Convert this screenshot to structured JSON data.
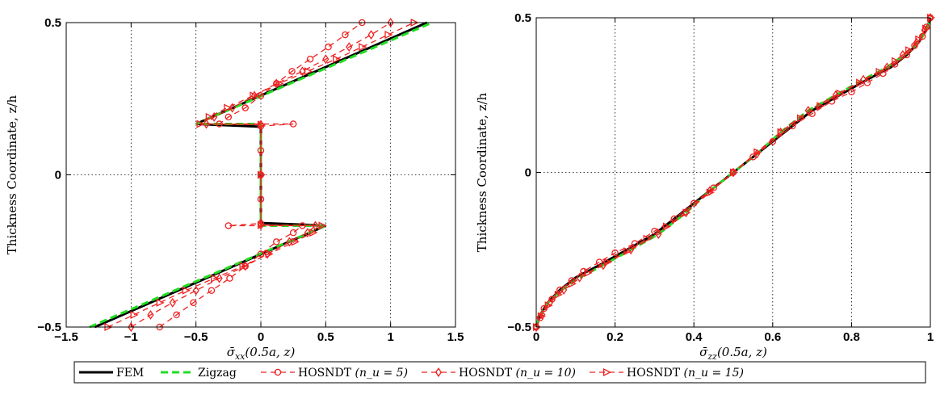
{
  "chart_data": [
    {
      "type": "line",
      "xlabel": "σ̄xx(0.5a, z)",
      "ylabel": "Thickness Coordinate, z/h",
      "xlim": [
        -1.5,
        1.5
      ],
      "ylim": [
        -0.5,
        0.5
      ],
      "xticks": [
        "−1.5",
        "−1",
        "−0.5",
        "0",
        "0.5",
        "1",
        "1.5"
      ],
      "yticks": [
        "−0.5",
        "0",
        "0.5"
      ],
      "grid": true,
      "series": [
        {
          "name": "FEM",
          "color": "#000000",
          "dash": "solid",
          "marker": "none",
          "points": [
            [
              -1.28,
              -0.5
            ],
            [
              0.5,
              -0.167
            ],
            [
              0.0,
              -0.158
            ],
            [
              0.0,
              0.158
            ],
            [
              -0.5,
              0.167
            ],
            [
              1.28,
              0.5
            ]
          ]
        },
        {
          "name": "Zigzag",
          "color": "#22dd22",
          "dash": "dashed",
          "marker": "none",
          "points": [
            [
              -1.32,
              -0.5
            ],
            [
              0.5,
              -0.167
            ],
            [
              0.0,
              -0.167
            ],
            [
              0.0,
              0.167
            ],
            [
              -0.5,
              0.167
            ],
            [
              1.32,
              0.5
            ]
          ]
        },
        {
          "name": "HOSNDT",
          "nu": "n_u = 5",
          "color": "#ee2222",
          "dash": "dashed",
          "marker": "circle",
          "points": [
            [
              -0.78,
              -0.5
            ],
            [
              -0.65,
              -0.46
            ],
            [
              -0.52,
              -0.42
            ],
            [
              -0.38,
              -0.38
            ],
            [
              -0.24,
              -0.34
            ],
            [
              -0.12,
              -0.3
            ],
            [
              0.0,
              -0.26
            ],
            [
              0.12,
              -0.22
            ],
            [
              0.25,
              -0.19
            ],
            [
              0.32,
              -0.167
            ],
            [
              -0.25,
              -0.167
            ],
            [
              0.0,
              -0.16
            ],
            [
              0.0,
              -0.08
            ],
            [
              0.0,
              0.0
            ],
            [
              0.0,
              0.08
            ],
            [
              0.0,
              0.16
            ],
            [
              0.25,
              0.167
            ],
            [
              -0.32,
              0.167
            ],
            [
              -0.25,
              0.19
            ],
            [
              -0.12,
              0.22
            ],
            [
              0.0,
              0.26
            ],
            [
              0.12,
              0.3
            ],
            [
              0.24,
              0.34
            ],
            [
              0.38,
              0.38
            ],
            [
              0.52,
              0.42
            ],
            [
              0.65,
              0.46
            ],
            [
              0.78,
              0.5
            ]
          ]
        },
        {
          "name": "HOSNDT",
          "nu": "n_u = 10",
          "color": "#ee2222",
          "dash": "dashed",
          "marker": "diamond",
          "points": [
            [
              -1.0,
              -0.5
            ],
            [
              -0.85,
              -0.46
            ],
            [
              -0.68,
              -0.42
            ],
            [
              -0.5,
              -0.38
            ],
            [
              -0.32,
              -0.34
            ],
            [
              -0.12,
              -0.3
            ],
            [
              0.05,
              -0.26
            ],
            [
              0.22,
              -0.22
            ],
            [
              0.36,
              -0.19
            ],
            [
              0.42,
              -0.167
            ],
            [
              0.0,
              -0.165
            ],
            [
              0.0,
              0.0
            ],
            [
              0.0,
              0.165
            ],
            [
              -0.42,
              0.167
            ],
            [
              -0.36,
              0.19
            ],
            [
              -0.22,
              0.22
            ],
            [
              -0.05,
              0.26
            ],
            [
              0.12,
              0.3
            ],
            [
              0.32,
              0.34
            ],
            [
              0.5,
              0.38
            ],
            [
              0.68,
              0.42
            ],
            [
              0.85,
              0.46
            ],
            [
              1.0,
              0.5
            ]
          ]
        },
        {
          "name": "HOSNDT",
          "nu": "n_u = 15",
          "color": "#ee2222",
          "dash": "dashed",
          "marker": "triangle",
          "points": [
            [
              -1.18,
              -0.5
            ],
            [
              -0.98,
              -0.46
            ],
            [
              -0.78,
              -0.42
            ],
            [
              -0.58,
              -0.38
            ],
            [
              -0.36,
              -0.34
            ],
            [
              -0.14,
              -0.3
            ],
            [
              0.06,
              -0.26
            ],
            [
              0.26,
              -0.22
            ],
            [
              0.4,
              -0.19
            ],
            [
              0.47,
              -0.167
            ],
            [
              0.0,
              -0.165
            ],
            [
              0.0,
              0.0
            ],
            [
              0.0,
              0.165
            ],
            [
              -0.47,
              0.167
            ],
            [
              -0.4,
              0.19
            ],
            [
              -0.26,
              0.22
            ],
            [
              -0.06,
              0.26
            ],
            [
              0.14,
              0.3
            ],
            [
              0.36,
              0.34
            ],
            [
              0.58,
              0.38
            ],
            [
              0.78,
              0.42
            ],
            [
              0.98,
              0.46
            ],
            [
              1.18,
              0.5
            ]
          ]
        }
      ]
    },
    {
      "type": "line",
      "xlabel": "σ̄zz(0.5a, z)",
      "ylabel": "Thickness Coordinate, z/h",
      "xlim": [
        0,
        1
      ],
      "ylim": [
        -0.5,
        0.5
      ],
      "xticks": [
        "0",
        "0.2",
        "0.4",
        "0.6",
        "0.8",
        "1"
      ],
      "yticks": [
        "−0.5",
        "0",
        "0.5"
      ],
      "grid": true,
      "series": [
        {
          "name": "FEM",
          "color": "#000000",
          "dash": "solid",
          "marker": "none",
          "points": [
            [
              0.0,
              -0.5
            ],
            [
              0.01,
              -0.46
            ],
            [
              0.03,
              -0.42
            ],
            [
              0.06,
              -0.38
            ],
            [
              0.1,
              -0.34
            ],
            [
              0.16,
              -0.3
            ],
            [
              0.23,
              -0.25
            ],
            [
              0.3,
              -0.2
            ],
            [
              0.37,
              -0.13
            ],
            [
              0.44,
              -0.06
            ],
            [
              0.5,
              0.0
            ],
            [
              0.56,
              0.06
            ],
            [
              0.63,
              0.13
            ],
            [
              0.7,
              0.2
            ],
            [
              0.77,
              0.25
            ],
            [
              0.84,
              0.3
            ],
            [
              0.9,
              0.34
            ],
            [
              0.94,
              0.38
            ],
            [
              0.97,
              0.42
            ],
            [
              0.99,
              0.46
            ],
            [
              1.0,
              0.5
            ]
          ]
        },
        {
          "name": "Zigzag",
          "color": "#22dd22",
          "dash": "dashed",
          "marker": "none",
          "points": [
            [
              0.0,
              -0.5
            ],
            [
              0.01,
              -0.46
            ],
            [
              0.03,
              -0.42
            ],
            [
              0.065,
              -0.38
            ],
            [
              0.11,
              -0.34
            ],
            [
              0.17,
              -0.3
            ],
            [
              0.24,
              -0.25
            ],
            [
              0.31,
              -0.2
            ],
            [
              0.38,
              -0.13
            ],
            [
              0.44,
              -0.06
            ],
            [
              0.5,
              0.0
            ],
            [
              0.56,
              0.06
            ],
            [
              0.62,
              0.13
            ],
            [
              0.69,
              0.2
            ],
            [
              0.76,
              0.25
            ],
            [
              0.83,
              0.3
            ],
            [
              0.89,
              0.34
            ],
            [
              0.935,
              0.38
            ],
            [
              0.97,
              0.42
            ],
            [
              0.99,
              0.46
            ],
            [
              1.0,
              0.5
            ]
          ]
        },
        {
          "name": "HOSNDT",
          "nu": "n_u = 5",
          "color": "#ee2222",
          "dash": "dashed",
          "marker": "circle",
          "points": [
            [
              0.0,
              -0.5
            ],
            [
              0.01,
              -0.47
            ],
            [
              0.02,
              -0.44
            ],
            [
              0.04,
              -0.41
            ],
            [
              0.06,
              -0.38
            ],
            [
              0.09,
              -0.35
            ],
            [
              0.12,
              -0.32
            ],
            [
              0.16,
              -0.29
            ],
            [
              0.2,
              -0.26
            ],
            [
              0.25,
              -0.23
            ],
            [
              0.3,
              -0.19
            ],
            [
              0.35,
              -0.15
            ],
            [
              0.4,
              -0.1
            ],
            [
              0.45,
              -0.05
            ],
            [
              0.5,
              0.0
            ],
            [
              0.55,
              0.05
            ],
            [
              0.6,
              0.1
            ],
            [
              0.65,
              0.15
            ],
            [
              0.7,
              0.19
            ],
            [
              0.75,
              0.23
            ],
            [
              0.8,
              0.26
            ],
            [
              0.84,
              0.29
            ],
            [
              0.88,
              0.32
            ],
            [
              0.91,
              0.35
            ],
            [
              0.94,
              0.38
            ],
            [
              0.96,
              0.41
            ],
            [
              0.98,
              0.44
            ],
            [
              0.99,
              0.47
            ],
            [
              1.0,
              0.5
            ]
          ]
        },
        {
          "name": "HOSNDT",
          "nu": "n_u = 10",
          "color": "#ee2222",
          "dash": "dashed",
          "marker": "diamond",
          "points": [
            [
              0.0,
              -0.5
            ],
            [
              0.015,
              -0.46
            ],
            [
              0.035,
              -0.42
            ],
            [
              0.07,
              -0.38
            ],
            [
              0.11,
              -0.34
            ],
            [
              0.17,
              -0.3
            ],
            [
              0.24,
              -0.25
            ],
            [
              0.31,
              -0.2
            ],
            [
              0.38,
              -0.13
            ],
            [
              0.44,
              -0.06
            ],
            [
              0.5,
              0.0
            ],
            [
              0.56,
              0.06
            ],
            [
              0.62,
              0.13
            ],
            [
              0.69,
              0.2
            ],
            [
              0.76,
              0.25
            ],
            [
              0.83,
              0.3
            ],
            [
              0.89,
              0.34
            ],
            [
              0.93,
              0.38
            ],
            [
              0.965,
              0.42
            ],
            [
              0.985,
              0.46
            ],
            [
              1.0,
              0.5
            ]
          ]
        },
        {
          "name": "HOSNDT",
          "nu": "n_u = 15",
          "color": "#ee2222",
          "dash": "dashed",
          "marker": "triangle",
          "points": [
            [
              0.0,
              -0.5
            ],
            [
              0.012,
              -0.465
            ],
            [
              0.03,
              -0.43
            ],
            [
              0.055,
              -0.395
            ],
            [
              0.09,
              -0.36
            ],
            [
              0.13,
              -0.325
            ],
            [
              0.18,
              -0.29
            ],
            [
              0.23,
              -0.255
            ],
            [
              0.28,
              -0.215
            ],
            [
              0.33,
              -0.175
            ],
            [
              0.38,
              -0.13
            ],
            [
              0.44,
              -0.065
            ],
            [
              0.5,
              0.0
            ],
            [
              0.56,
              0.065
            ],
            [
              0.62,
              0.13
            ],
            [
              0.67,
              0.175
            ],
            [
              0.72,
              0.215
            ],
            [
              0.77,
              0.255
            ],
            [
              0.82,
              0.29
            ],
            [
              0.87,
              0.325
            ],
            [
              0.91,
              0.36
            ],
            [
              0.945,
              0.395
            ],
            [
              0.97,
              0.43
            ],
            [
              0.988,
              0.465
            ],
            [
              1.0,
              0.5
            ]
          ]
        }
      ]
    }
  ],
  "legend": {
    "placement": "bottom",
    "entries": [
      {
        "label": "FEM",
        "color": "#000000",
        "dash": "solid",
        "marker": "none"
      },
      {
        "label": "Zigzag",
        "color": "#22dd22",
        "dash": "dashed",
        "marker": "none"
      },
      {
        "label": "HOSNDT",
        "nu": "(n_u = 5)",
        "color": "#ee2222",
        "dash": "dashed",
        "marker": "circle"
      },
      {
        "label": "HOSNDT",
        "nu": "(n_u = 10)",
        "color": "#ee2222",
        "dash": "dashed",
        "marker": "diamond"
      },
      {
        "label": "HOSNDT",
        "nu": "(n_u = 15)",
        "color": "#ee2222",
        "dash": "dashed",
        "marker": "triangle"
      }
    ]
  }
}
